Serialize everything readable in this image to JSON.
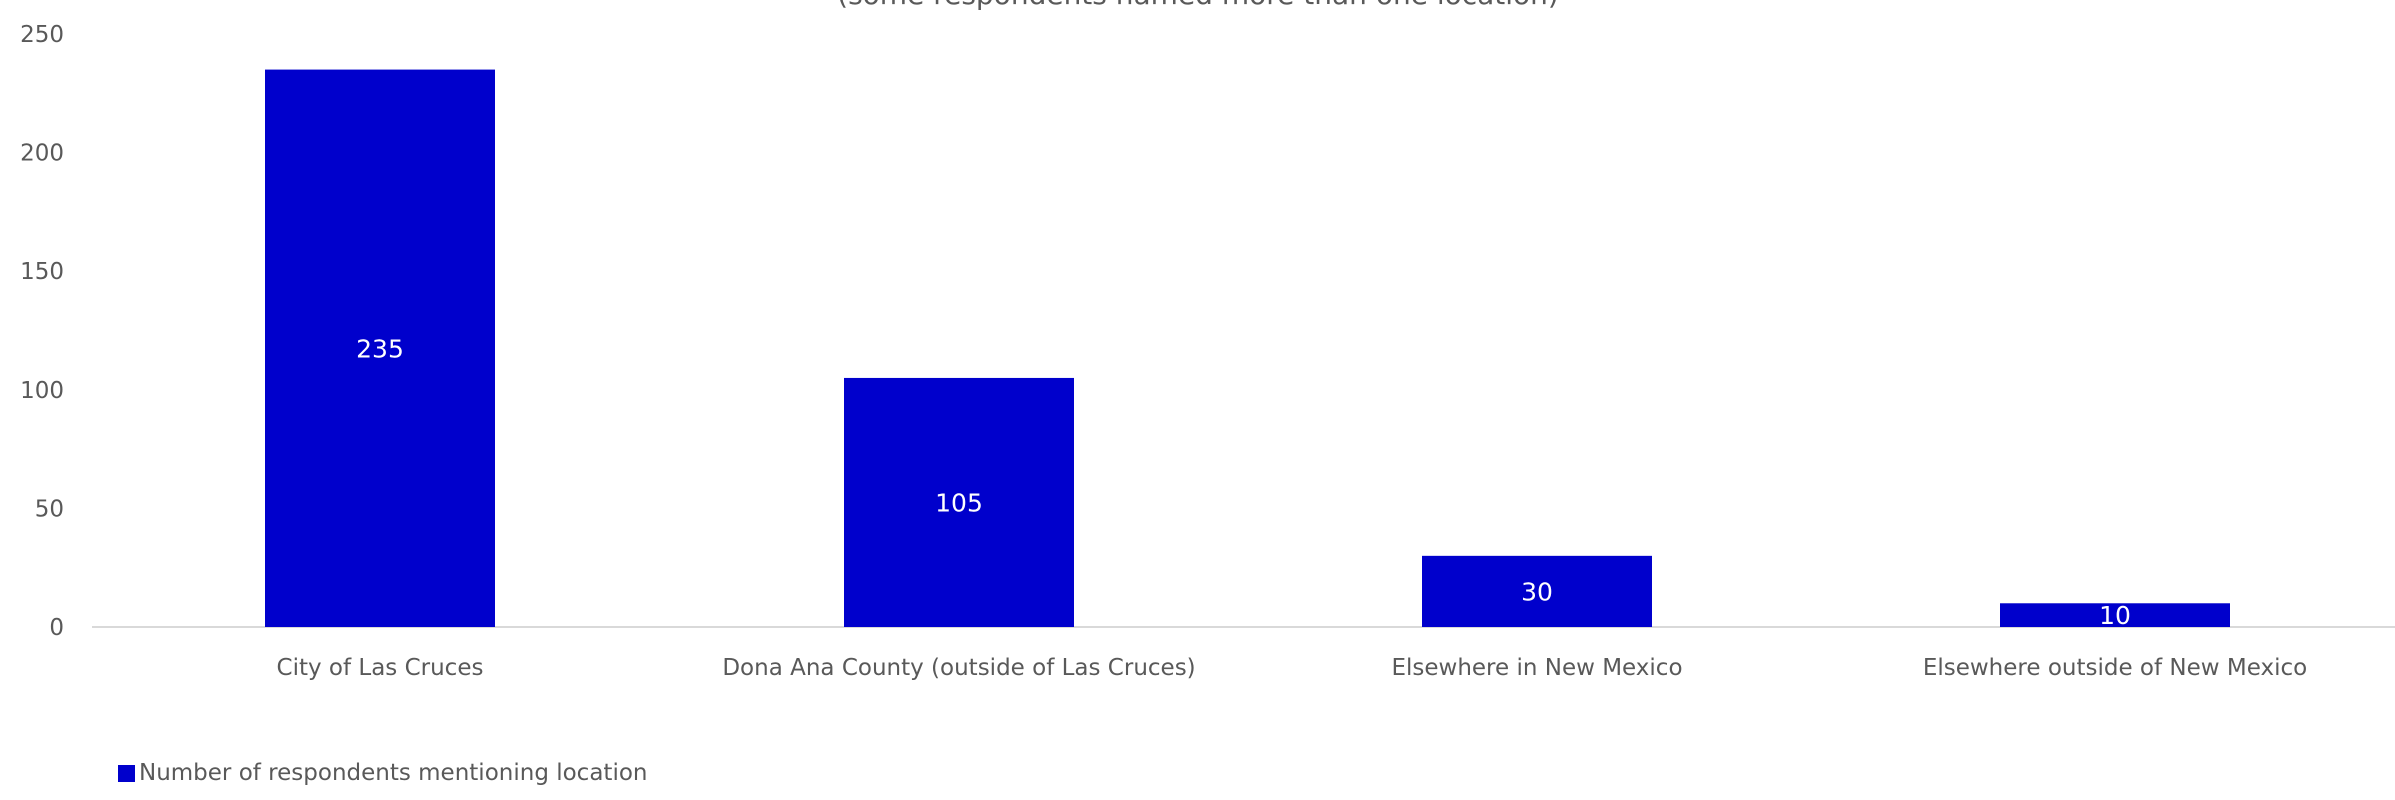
{
  "chart_data": {
    "type": "bar",
    "subtitle": "(some respondents named more than one location)",
    "categories": [
      "City of Las Cruces",
      "Dona Ana County (outside of Las Cruces)",
      "Elsewhere in New Mexico",
      "Elsewhere outside of New Mexico"
    ],
    "series": [
      {
        "name": "Number of respondents mentioning location",
        "values": [
          235,
          105,
          30,
          10
        ]
      }
    ],
    "data_labels": [
      "235",
      "105",
      "30",
      "10"
    ],
    "ylim": [
      0,
      250
    ],
    "yticks": [
      "0",
      "50",
      "100",
      "150",
      "200",
      "250"
    ],
    "grid": false,
    "legend_position": "bottom-left",
    "bar_color": "#0000CC"
  }
}
